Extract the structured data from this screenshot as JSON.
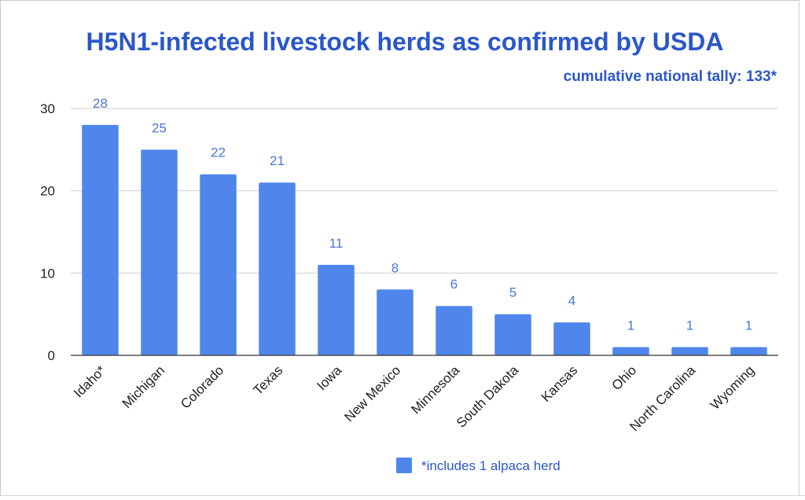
{
  "chart_data": {
    "type": "bar",
    "title": "H5N1-infected livestock herds as confirmed by USDA",
    "subtitle": "cumulative national tally: 133*",
    "categories": [
      "Idaho*",
      "Michigan",
      "Colorado",
      "Texas",
      "Iowa",
      "New Mexico",
      "Minnesota",
      "South Dakota",
      "Kansas",
      "Ohio",
      "North Carolina",
      "Wyoming"
    ],
    "values": [
      28,
      25,
      22,
      21,
      11,
      8,
      6,
      5,
      4,
      1,
      1,
      1
    ],
    "data_labels": [
      "28",
      "25",
      "22",
      "21",
      "11",
      "8",
      "6",
      "5",
      "4",
      "1",
      "1",
      "1"
    ],
    "yticks": [
      "0",
      "10",
      "20",
      "30"
    ],
    "ytick_values": [
      0,
      10,
      20,
      30
    ],
    "ylim": [
      0,
      30
    ],
    "grid": true,
    "legend": {
      "position": "bottom",
      "label": "*includes 1 alpaca herd"
    },
    "bar_color": "#4f86ec",
    "title_color": "#2a57c9"
  }
}
